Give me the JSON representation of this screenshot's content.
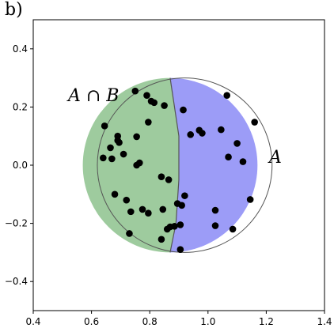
{
  "chart_data": {
    "type": "scatter",
    "panel_label": "b)",
    "title": "",
    "xlabel": "",
    "ylabel": "",
    "xlim": [
      0.4,
      1.4
    ],
    "ylim": [
      -0.5,
      0.5
    ],
    "x_ticks": [
      0.4,
      0.6,
      0.8,
      1.0,
      1.2,
      1.4
    ],
    "x_tick_labels": [
      "0.4",
      "0.6",
      "0.8",
      "1.0",
      "1.2",
      "1.4"
    ],
    "y_ticks": [
      0.4,
      0.2,
      0.0,
      -0.2,
      -0.4
    ],
    "y_tick_labels": [
      "0.4",
      "0.2",
      "0.0",
      "−0.2",
      "−0.4"
    ],
    "grid": false,
    "regions": {
      "circle": {
        "center": [
          0.92,
          0.0
        ],
        "radius": 0.3
      },
      "boundary_points": [
        [
          0.87,
          0.3
        ],
        [
          0.9,
          0.1
        ],
        [
          0.9,
          -0.05
        ],
        [
          0.89,
          -0.2
        ],
        [
          0.87,
          -0.3
        ]
      ],
      "intersection": {
        "label": "A ∩ B",
        "color": "#9ecb9e"
      },
      "remainder": {
        "label": "A",
        "color": "#9c9cf7"
      }
    },
    "points": [
      [
        0.75,
        0.255
      ],
      [
        1.065,
        0.24
      ],
      [
        0.79,
        0.24
      ],
      [
        0.805,
        0.22
      ],
      [
        0.815,
        0.215
      ],
      [
        0.85,
        0.205
      ],
      [
        0.915,
        0.19
      ],
      [
        1.16,
        0.148
      ],
      [
        0.795,
        0.148
      ],
      [
        0.645,
        0.135
      ],
      [
        0.97,
        0.12
      ],
      [
        1.045,
        0.122
      ],
      [
        0.98,
        0.11
      ],
      [
        0.94,
        0.105
      ],
      [
        0.755,
        0.098
      ],
      [
        0.69,
        0.1
      ],
      [
        0.69,
        0.085
      ],
      [
        1.1,
        0.075
      ],
      [
        0.695,
        0.078
      ],
      [
        0.665,
        0.06
      ],
      [
        0.71,
        0.038
      ],
      [
        0.64,
        0.025
      ],
      [
        0.67,
        0.022
      ],
      [
        1.07,
        0.028
      ],
      [
        1.12,
        0.012
      ],
      [
        0.765,
        0.008
      ],
      [
        0.755,
        0.0
      ],
      [
        0.84,
        -0.04
      ],
      [
        0.865,
        -0.05
      ],
      [
        0.68,
        -0.1
      ],
      [
        0.92,
        -0.105
      ],
      [
        0.72,
        -0.12
      ],
      [
        0.895,
        -0.132
      ],
      [
        0.91,
        -0.138
      ],
      [
        1.145,
        -0.118
      ],
      [
        0.775,
        -0.152
      ],
      [
        0.845,
        -0.152
      ],
      [
        1.025,
        -0.155
      ],
      [
        0.735,
        -0.16
      ],
      [
        0.795,
        -0.165
      ],
      [
        0.905,
        -0.205
      ],
      [
        1.025,
        -0.208
      ],
      [
        0.885,
        -0.21
      ],
      [
        0.87,
        -0.212
      ],
      [
        0.86,
        -0.22
      ],
      [
        1.085,
        -0.22
      ],
      [
        0.73,
        -0.235
      ],
      [
        0.84,
        -0.255
      ],
      [
        0.905,
        -0.29
      ]
    ]
  }
}
